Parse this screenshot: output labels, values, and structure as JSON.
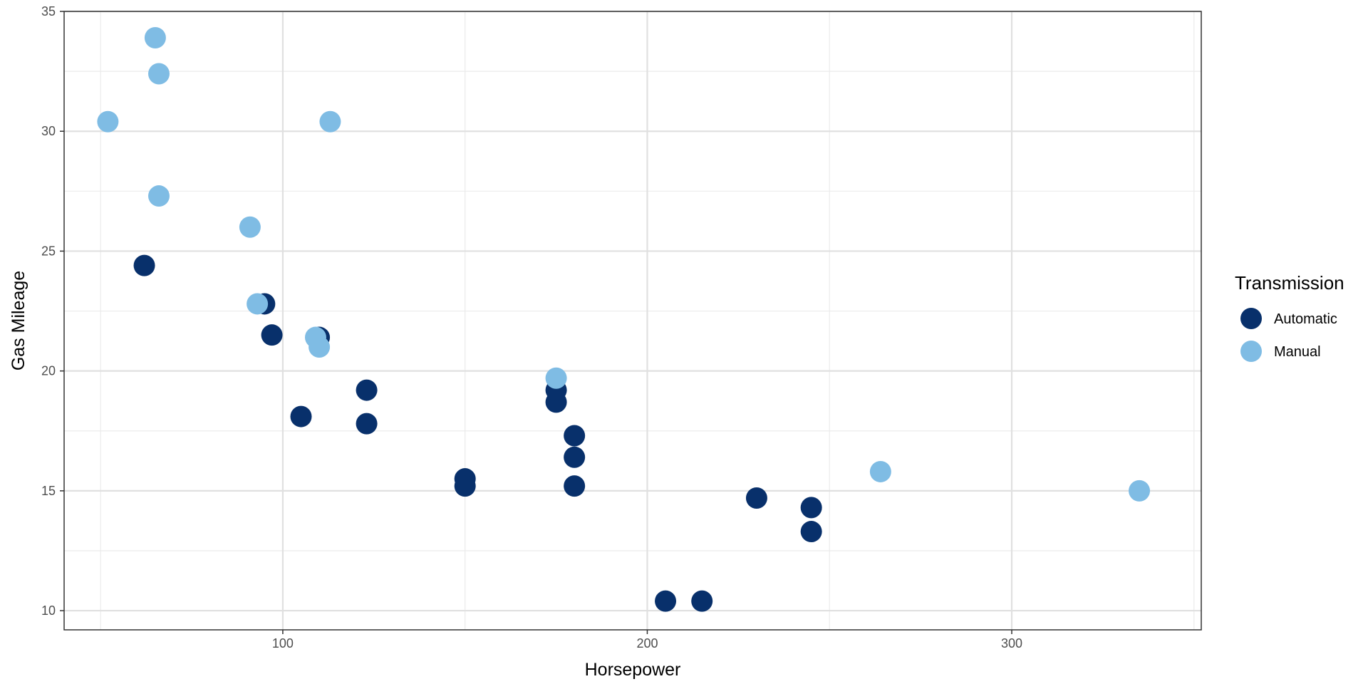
{
  "chart_data": {
    "type": "scatter",
    "title": "",
    "xlabel": "Horsepower",
    "ylabel": "Gas Mileage",
    "xlim": [
      40,
      352
    ],
    "ylim": [
      9.2,
      35
    ],
    "x_ticks": [
      100,
      200,
      300
    ],
    "y_ticks": [
      10,
      15,
      20,
      25,
      30,
      35
    ],
    "x_tick_labels": [
      "100",
      "200",
      "300"
    ],
    "y_tick_labels": [
      "10",
      "15",
      "20",
      "25",
      "30",
      "35"
    ],
    "grid": true,
    "legend": {
      "title": "Transmission",
      "position": "right"
    },
    "series": [
      {
        "name": "Automatic",
        "color": "#08306b",
        "points": [
          {
            "x": 62,
            "y": 24.4
          },
          {
            "x": 95,
            "y": 22.8
          },
          {
            "x": 97,
            "y": 21.5
          },
          {
            "x": 105,
            "y": 18.1
          },
          {
            "x": 110,
            "y": 21.4
          },
          {
            "x": 123,
            "y": 19.2
          },
          {
            "x": 123,
            "y": 17.8
          },
          {
            "x": 150,
            "y": 15.5
          },
          {
            "x": 150,
            "y": 15.2
          },
          {
            "x": 175,
            "y": 18.7
          },
          {
            "x": 175,
            "y": 19.2
          },
          {
            "x": 180,
            "y": 16.4
          },
          {
            "x": 180,
            "y": 17.3
          },
          {
            "x": 180,
            "y": 15.2
          },
          {
            "x": 205,
            "y": 10.4
          },
          {
            "x": 215,
            "y": 10.4
          },
          {
            "x": 230,
            "y": 14.7
          },
          {
            "x": 245,
            "y": 14.3
          },
          {
            "x": 245,
            "y": 13.3
          }
        ]
      },
      {
        "name": "Manual",
        "color": "#7fbce4",
        "points": [
          {
            "x": 52,
            "y": 30.4
          },
          {
            "x": 65,
            "y": 33.9
          },
          {
            "x": 66,
            "y": 32.4
          },
          {
            "x": 66,
            "y": 27.3
          },
          {
            "x": 91,
            "y": 26.0
          },
          {
            "x": 93,
            "y": 22.8
          },
          {
            "x": 109,
            "y": 21.4
          },
          {
            "x": 110,
            "y": 21.0
          },
          {
            "x": 113,
            "y": 30.4
          },
          {
            "x": 175,
            "y": 19.7
          },
          {
            "x": 264,
            "y": 15.8
          },
          {
            "x": 335,
            "y": 15.0
          }
        ]
      }
    ]
  }
}
